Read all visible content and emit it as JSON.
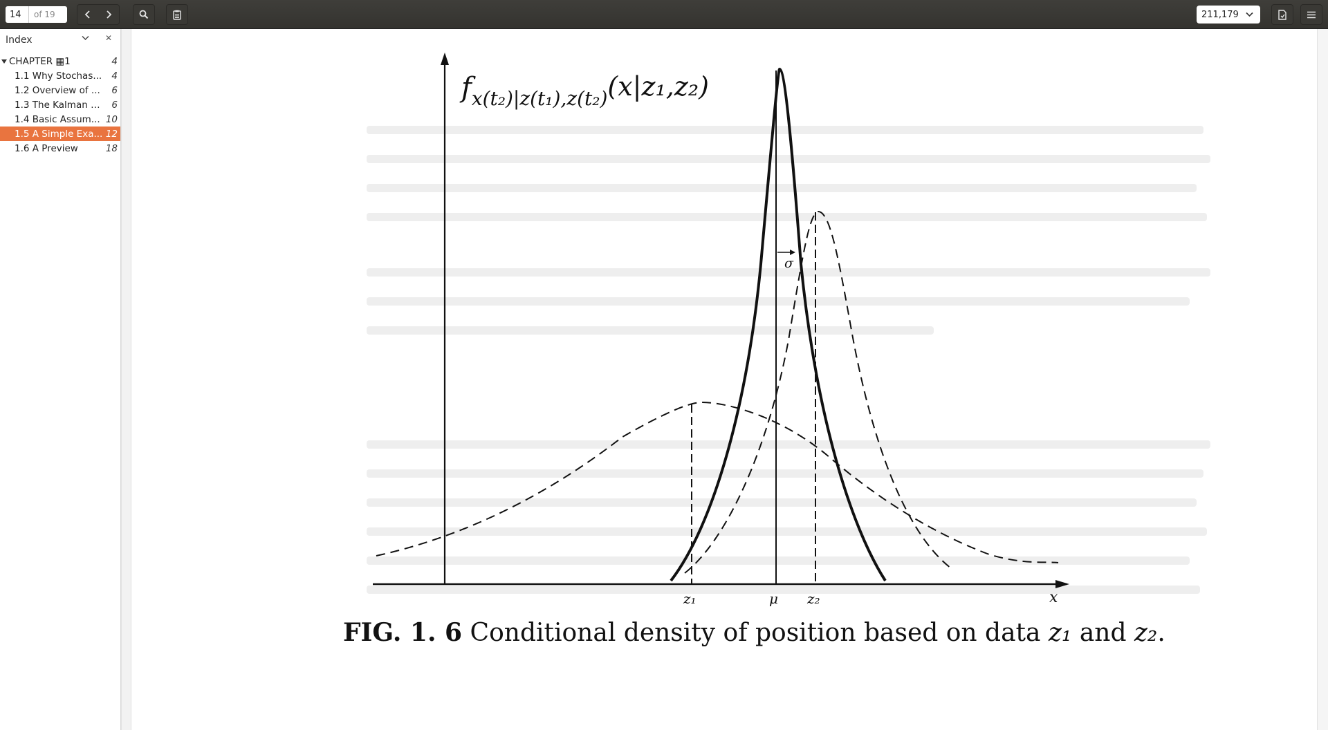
{
  "toolbar": {
    "page_number": "14",
    "page_total": "of 19",
    "zoom": "211,179"
  },
  "sidebar": {
    "title": "Index",
    "items": [
      {
        "label": "CHAPTER ▦1",
        "page": "4"
      },
      {
        "label": "1.1 Why Stochas...",
        "page": "4"
      },
      {
        "label": "1.2 Overview of ...",
        "page": "6"
      },
      {
        "label": "1.3 The Kalman F...",
        "page": "6"
      },
      {
        "label": "1.4 Basic Assum...",
        "page": "10"
      },
      {
        "label": "1.5 A Simple Exa...",
        "page": "12",
        "active": true
      },
      {
        "label": "1.6 A Preview",
        "page": "18"
      }
    ]
  },
  "figure": {
    "fn_f": "f",
    "fn_sub": "x(t₂)|z(t₁),z(t₂)",
    "fn_args": "(x|z₁,z₂)",
    "sigma": "σ",
    "tick_z1": "z₁",
    "tick_mu": "μ",
    "tick_z2": "z₂",
    "axis_x": "x",
    "caption_fig": "FIG. 1. 6",
    "caption_text": "Conditional density of position based on data",
    "caption_z1": "z₁",
    "caption_and": "and",
    "caption_z2": "z₂",
    "caption_end": "."
  },
  "colors": {
    "toolbar_bg": "#3a3935",
    "active_item": "#e9743f"
  }
}
